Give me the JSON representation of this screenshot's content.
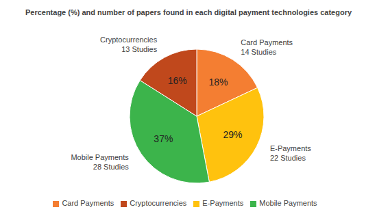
{
  "chart_data": {
    "type": "pie",
    "title": "Percentage (%) and number of papers found in each digital payment technologies category",
    "categories": [
      "Card Payments",
      "E-Payments",
      "Mobile Payments",
      "Cryptocurrencies"
    ],
    "values": [
      18,
      29,
      37,
      16
    ],
    "value_labels": [
      "18%",
      "29%",
      "37%",
      "16%"
    ],
    "studies": [
      14,
      22,
      28,
      13
    ],
    "studies_labels": [
      "14 Studies",
      "22 Studies",
      "28 Studies",
      "13 Studies"
    ],
    "colors": [
      "#F47E32",
      "#FFC20E",
      "#3CB44B",
      "#C0481C"
    ],
    "data_labels": true,
    "legend": "bottom"
  }
}
